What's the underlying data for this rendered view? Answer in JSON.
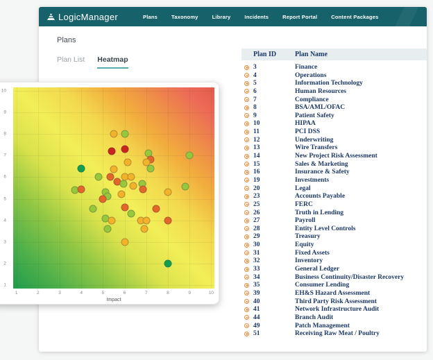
{
  "nav": {
    "brand": "LogicManager",
    "items": [
      "Plans",
      "Taxonomy",
      "Library",
      "Incidents",
      "Report Portal",
      "Content Packages"
    ]
  },
  "page": {
    "title": "Plans"
  },
  "tabs": {
    "items": [
      {
        "label": "Plan List",
        "active": false
      },
      {
        "label": "Heatmap",
        "active": true
      }
    ]
  },
  "table": {
    "columns": [
      "Plan ID",
      "Plan Name"
    ],
    "rows": [
      {
        "id": "3",
        "name": "Finance"
      },
      {
        "id": "4",
        "name": "Operations"
      },
      {
        "id": "5",
        "name": "Information Technology"
      },
      {
        "id": "6",
        "name": "Human Resources"
      },
      {
        "id": "7",
        "name": "Compliance"
      },
      {
        "id": "8",
        "name": "BSA/AML/OFAC"
      },
      {
        "id": "9",
        "name": "Patient Safety"
      },
      {
        "id": "10",
        "name": "HIPAA"
      },
      {
        "id": "11",
        "name": "PCI DSS"
      },
      {
        "id": "12",
        "name": "Underwriting"
      },
      {
        "id": "13",
        "name": "Wire Transfers"
      },
      {
        "id": "14",
        "name": "New Project Risk Assessment"
      },
      {
        "id": "15",
        "name": "Sales & Marketing"
      },
      {
        "id": "16",
        "name": "Insurance & Safety"
      },
      {
        "id": "19",
        "name": "Investments"
      },
      {
        "id": "20",
        "name": "Legal"
      },
      {
        "id": "23",
        "name": "Accounts Payable"
      },
      {
        "id": "25",
        "name": "FERC"
      },
      {
        "id": "26",
        "name": "Truth in Lending"
      },
      {
        "id": "27",
        "name": "Payroll"
      },
      {
        "id": "28",
        "name": "Entity Level Controls"
      },
      {
        "id": "29",
        "name": "Treasury"
      },
      {
        "id": "30",
        "name": "Equity"
      },
      {
        "id": "31",
        "name": "Fixed Assets"
      },
      {
        "id": "32",
        "name": "Inventory"
      },
      {
        "id": "33",
        "name": "General Ledger"
      },
      {
        "id": "34",
        "name": "Business Continuity/Disaster Recovery"
      },
      {
        "id": "35",
        "name": "Consumer Lending"
      },
      {
        "id": "39",
        "name": "EH&S Hazard Assessment"
      },
      {
        "id": "40",
        "name": "Third Party Risk Assessment"
      },
      {
        "id": "41",
        "name": "Network Infrastructure Audit"
      },
      {
        "id": "44",
        "name": "Branch Audit"
      },
      {
        "id": "49",
        "name": "Patch Management"
      },
      {
        "id": "51",
        "name": "Receiving Raw Meat / Poultry"
      }
    ]
  },
  "chart_data": {
    "type": "scatter",
    "title": "",
    "xlabel": "Impact",
    "ylabel": "",
    "xlim": [
      1,
      10
    ],
    "ylim": [
      1,
      10
    ],
    "x_ticks": [
      1,
      2,
      3,
      4,
      5,
      6,
      7,
      8,
      9,
      10
    ],
    "y_ticks": [
      1,
      2,
      3,
      4,
      5,
      6,
      7,
      8,
      9,
      10
    ],
    "grid": true,
    "legend": "none",
    "background": "diagonal risk gradient, green (low/low) to yellow (mid) to red (high/high)",
    "points": [
      {
        "x": 5.5,
        "y": 8.0,
        "risk": "amber"
      },
      {
        "x": 6.0,
        "y": 8.0,
        "risk": "green"
      },
      {
        "x": 6.0,
        "y": 7.3,
        "risk": "red"
      },
      {
        "x": 5.4,
        "y": 7.2,
        "risk": "red"
      },
      {
        "x": 7.1,
        "y": 7.1,
        "risk": "green"
      },
      {
        "x": 9.0,
        "y": 7.0,
        "risk": "green"
      },
      {
        "x": 7.2,
        "y": 6.8,
        "risk": "orange"
      },
      {
        "x": 6.15,
        "y": 6.7,
        "risk": "amber"
      },
      {
        "x": 7.0,
        "y": 6.7,
        "risk": "amber"
      },
      {
        "x": 4.0,
        "y": 6.4,
        "risk": "dark_green"
      },
      {
        "x": 7.2,
        "y": 6.4,
        "risk": "green"
      },
      {
        "x": 5.5,
        "y": 6.35,
        "risk": "amber"
      },
      {
        "x": 4.8,
        "y": 6.0,
        "risk": "green"
      },
      {
        "x": 5.35,
        "y": 6.0,
        "risk": "orange"
      },
      {
        "x": 6.0,
        "y": 6.0,
        "risk": "amber"
      },
      {
        "x": 6.3,
        "y": 6.0,
        "risk": "amber"
      },
      {
        "x": 5.65,
        "y": 5.8,
        "risk": "orange"
      },
      {
        "x": 5.95,
        "y": 5.7,
        "risk": "green"
      },
      {
        "x": 6.8,
        "y": 5.7,
        "risk": "green"
      },
      {
        "x": 6.4,
        "y": 5.6,
        "risk": "amber"
      },
      {
        "x": 8.8,
        "y": 5.55,
        "risk": "green"
      },
      {
        "x": 3.7,
        "y": 5.4,
        "risk": "green"
      },
      {
        "x": 4.0,
        "y": 5.45,
        "risk": "orange"
      },
      {
        "x": 6.85,
        "y": 5.45,
        "risk": "orange"
      },
      {
        "x": 5.1,
        "y": 5.3,
        "risk": "green"
      },
      {
        "x": 8.0,
        "y": 5.3,
        "risk": "amber"
      },
      {
        "x": 5.85,
        "y": 5.2,
        "risk": "amber"
      },
      {
        "x": 5.2,
        "y": 5.1,
        "risk": "green"
      },
      {
        "x": 5.0,
        "y": 5.0,
        "risk": "orange"
      },
      {
        "x": 4.55,
        "y": 4.55,
        "risk": "green"
      },
      {
        "x": 6.0,
        "y": 4.6,
        "risk": "orange"
      },
      {
        "x": 7.45,
        "y": 4.55,
        "risk": "orange"
      },
      {
        "x": 6.3,
        "y": 4.3,
        "risk": "green"
      },
      {
        "x": 5.1,
        "y": 4.1,
        "risk": "green"
      },
      {
        "x": 5.4,
        "y": 4.0,
        "risk": "amber"
      },
      {
        "x": 6.75,
        "y": 4.0,
        "risk": "amber"
      },
      {
        "x": 7.0,
        "y": 4.0,
        "risk": "amber"
      },
      {
        "x": 8.0,
        "y": 4.0,
        "risk": "orange"
      },
      {
        "x": 5.2,
        "y": 3.6,
        "risk": "green"
      },
      {
        "x": 6.9,
        "y": 3.6,
        "risk": "amber"
      },
      {
        "x": 6.0,
        "y": 3.0,
        "risk": "amber"
      },
      {
        "x": 8.0,
        "y": 2.0,
        "risk": "dark_green"
      }
    ]
  },
  "colors": {
    "navbar": "#17616b",
    "tab_underline": "#57aaa9",
    "table_text": "#1d3966",
    "row_icon": "#ea8c3d",
    "dot_red": "#c9251d",
    "dot_orange": "#e4672a",
    "dot_amber": "#f2b32b",
    "dot_green": "#97c83c",
    "dot_dark_green": "#13a04e",
    "heatmap_gradient_stops": [
      "#1f9c4d 0%",
      "#4fb04a 12%",
      "#94c844 26%",
      "#d9e24c 38%",
      "#f2ee58 50%",
      "#f3d94e 62%",
      "#f2ae3d 73%",
      "#ee8b49 83%",
      "#ec6b56 92%",
      "#e55a4b 100%"
    ]
  }
}
